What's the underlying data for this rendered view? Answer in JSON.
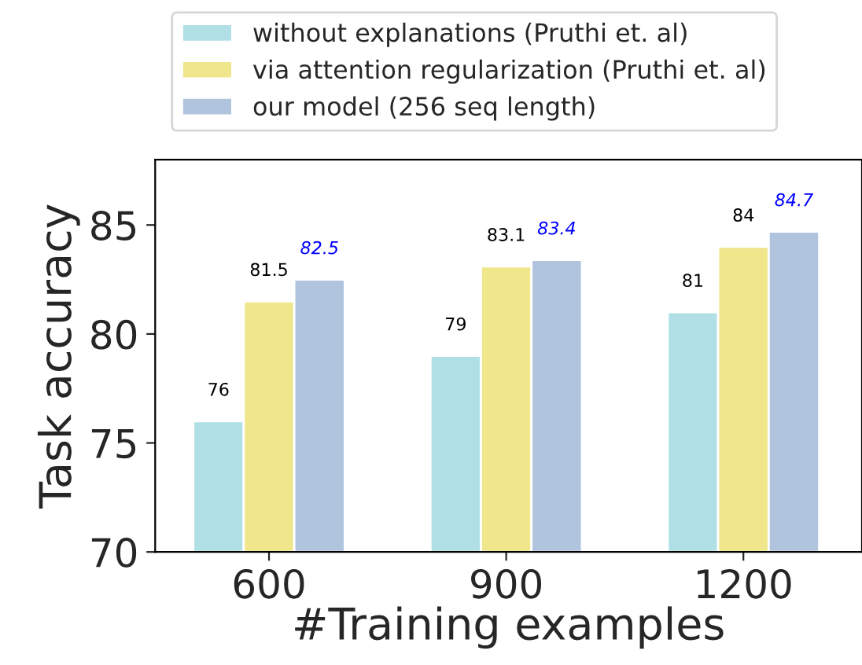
{
  "chart_data": {
    "type": "bar",
    "xlabel": "#Training examples",
    "ylabel": "Task accuracy",
    "categories": [
      "600",
      "900",
      "1200"
    ],
    "series": [
      {
        "name": "without explanations (Pruthi et. al)",
        "color": "#b0e0e6",
        "values": [
          76,
          79,
          81
        ]
      },
      {
        "name": "via attention regularization (Pruthi et. al)",
        "color": "#f0e68c",
        "values": [
          81.5,
          83.1,
          84
        ]
      },
      {
        "name": "our model (256 seq length)",
        "color": "#b0c4de",
        "values": [
          82.5,
          83.4,
          84.7
        ]
      }
    ],
    "ylim": [
      70,
      88
    ],
    "yticks": [
      70,
      75,
      80,
      85
    ],
    "data_labels": true,
    "legend": "top",
    "grid": false
  }
}
